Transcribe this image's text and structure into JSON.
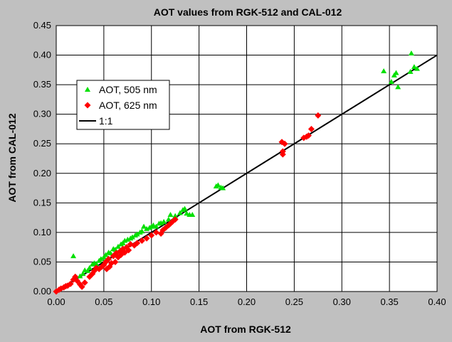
{
  "chart_data": {
    "type": "scatter",
    "title": "AOT values from RGK-512 and CAL-012",
    "xlabel": "AOT from RGK-512",
    "ylabel": "AOT from CAL-012",
    "xlim": [
      0,
      0.4
    ],
    "ylim": [
      0,
      0.45
    ],
    "x_ticks": [
      "0.00",
      "0.05",
      "0.10",
      "0.15",
      "0.20",
      "0.25",
      "0.30",
      "0.35",
      "0.40"
    ],
    "y_ticks": [
      "0.00",
      "0.05",
      "0.10",
      "0.15",
      "0.20",
      "0.25",
      "0.30",
      "0.35",
      "0.40",
      "0.45"
    ],
    "grid": true,
    "legend_position": "upper-left",
    "series": [
      {
        "name": "AOT, 505 nm",
        "marker": "triangle",
        "color": "#00e000",
        "points": [
          [
            0.018,
            0.06
          ],
          [
            0.025,
            0.026
          ],
          [
            0.028,
            0.03
          ],
          [
            0.03,
            0.036
          ],
          [
            0.033,
            0.035
          ],
          [
            0.035,
            0.04
          ],
          [
            0.038,
            0.046
          ],
          [
            0.04,
            0.048
          ],
          [
            0.042,
            0.047
          ],
          [
            0.045,
            0.052
          ],
          [
            0.047,
            0.055
          ],
          [
            0.05,
            0.058
          ],
          [
            0.052,
            0.062
          ],
          [
            0.055,
            0.066
          ],
          [
            0.057,
            0.065
          ],
          [
            0.06,
            0.072
          ],
          [
            0.062,
            0.071
          ],
          [
            0.065,
            0.076
          ],
          [
            0.068,
            0.08
          ],
          [
            0.07,
            0.082
          ],
          [
            0.072,
            0.086
          ],
          [
            0.075,
            0.088
          ],
          [
            0.078,
            0.09
          ],
          [
            0.08,
            0.092
          ],
          [
            0.083,
            0.095
          ],
          [
            0.085,
            0.097
          ],
          [
            0.088,
            0.1
          ],
          [
            0.09,
            0.102
          ],
          [
            0.092,
            0.11
          ],
          [
            0.095,
            0.106
          ],
          [
            0.098,
            0.108
          ],
          [
            0.1,
            0.11
          ],
          [
            0.102,
            0.112
          ],
          [
            0.105,
            0.11
          ],
          [
            0.108,
            0.115
          ],
          [
            0.11,
            0.116
          ],
          [
            0.113,
            0.118
          ],
          [
            0.118,
            0.122
          ],
          [
            0.12,
            0.13
          ],
          [
            0.125,
            0.128
          ],
          [
            0.13,
            0.133
          ],
          [
            0.133,
            0.138
          ],
          [
            0.135,
            0.14
          ],
          [
            0.137,
            0.132
          ],
          [
            0.14,
            0.13
          ],
          [
            0.143,
            0.13
          ],
          [
            0.168,
            0.178
          ],
          [
            0.17,
            0.18
          ],
          [
            0.173,
            0.176
          ],
          [
            0.175,
            0.175
          ],
          [
            0.344,
            0.373
          ],
          [
            0.352,
            0.355
          ],
          [
            0.355,
            0.366
          ],
          [
            0.357,
            0.37
          ],
          [
            0.359,
            0.346
          ],
          [
            0.372,
            0.372
          ],
          [
            0.373,
            0.403
          ],
          [
            0.376,
            0.38
          ],
          [
            0.379,
            0.377
          ]
        ]
      },
      {
        "name": "AOT, 625 nm",
        "marker": "diamond",
        "color": "#ff0000",
        "points": [
          [
            0.0,
            0.0
          ],
          [
            0.003,
            0.003
          ],
          [
            0.005,
            0.005
          ],
          [
            0.008,
            0.007
          ],
          [
            0.01,
            0.009
          ],
          [
            0.012,
            0.01
          ],
          [
            0.015,
            0.013
          ],
          [
            0.018,
            0.02
          ],
          [
            0.02,
            0.025
          ],
          [
            0.022,
            0.018
          ],
          [
            0.025,
            0.012
          ],
          [
            0.027,
            0.008
          ],
          [
            0.03,
            0.015
          ],
          [
            0.035,
            0.025
          ],
          [
            0.038,
            0.03
          ],
          [
            0.04,
            0.035
          ],
          [
            0.042,
            0.04
          ],
          [
            0.045,
            0.038
          ],
          [
            0.048,
            0.042
          ],
          [
            0.05,
            0.045
          ],
          [
            0.052,
            0.05
          ],
          [
            0.053,
            0.038
          ],
          [
            0.055,
            0.055
          ],
          [
            0.056,
            0.042
          ],
          [
            0.058,
            0.048
          ],
          [
            0.06,
            0.06
          ],
          [
            0.062,
            0.05
          ],
          [
            0.063,
            0.065
          ],
          [
            0.065,
            0.058
          ],
          [
            0.067,
            0.068
          ],
          [
            0.068,
            0.062
          ],
          [
            0.07,
            0.072
          ],
          [
            0.072,
            0.066
          ],
          [
            0.074,
            0.075
          ],
          [
            0.076,
            0.07
          ],
          [
            0.078,
            0.08
          ],
          [
            0.082,
            0.078
          ],
          [
            0.085,
            0.082
          ],
          [
            0.09,
            0.086
          ],
          [
            0.095,
            0.09
          ],
          [
            0.1,
            0.095
          ],
          [
            0.105,
            0.1
          ],
          [
            0.11,
            0.098
          ],
          [
            0.112,
            0.104
          ],
          [
            0.115,
            0.108
          ],
          [
            0.118,
            0.112
          ],
          [
            0.12,
            0.115
          ],
          [
            0.122,
            0.118
          ],
          [
            0.125,
            0.122
          ],
          [
            0.237,
            0.253
          ],
          [
            0.238,
            0.232
          ],
          [
            0.238,
            0.237
          ],
          [
            0.24,
            0.25
          ],
          [
            0.26,
            0.26
          ],
          [
            0.263,
            0.262
          ],
          [
            0.265,
            0.264
          ],
          [
            0.268,
            0.275
          ],
          [
            0.275,
            0.298
          ]
        ]
      },
      {
        "name": "1:1",
        "marker": "line",
        "color": "#000000",
        "points": [
          [
            0,
            0
          ],
          [
            0.4,
            0.4
          ]
        ]
      }
    ]
  }
}
